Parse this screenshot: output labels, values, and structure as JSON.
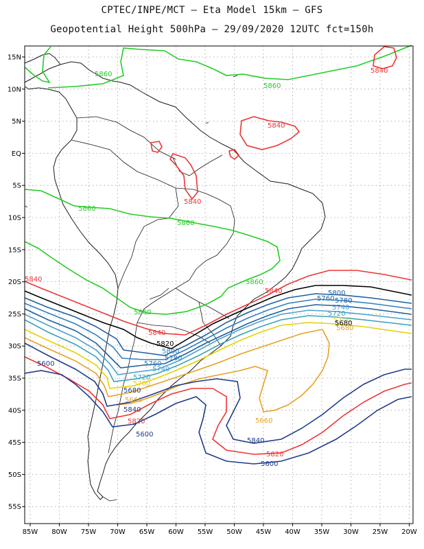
{
  "header": {
    "line1": "CPTEC/INPE/MCT –  Eta Model 15km – GFS",
    "line2": "Geopotential Height 500hPa – 29/09/2020 12UTC fct=150h"
  },
  "axes": {
    "lat_labels": [
      "15N",
      "10N",
      "5N",
      "EQ",
      "5S",
      "10S",
      "15S",
      "20S",
      "25S",
      "30S",
      "35S",
      "40S",
      "45S",
      "50S",
      "55S"
    ],
    "lon_labels": [
      "85W",
      "80W",
      "75W",
      "70W",
      "65W",
      "60W",
      "55W",
      "50W",
      "45W",
      "40W",
      "35W",
      "30W",
      "25W",
      "20W"
    ]
  },
  "contour_labels": [
    {
      "text": "5860",
      "color": "#22cc22"
    },
    {
      "text": "5860",
      "color": "#22cc22"
    },
    {
      "text": "5860",
      "color": "#22cc22"
    },
    {
      "text": "5860",
      "color": "#22cc22"
    },
    {
      "text": "5860",
      "color": "#22cc22"
    },
    {
      "text": "5860",
      "color": "#22cc22"
    },
    {
      "text": "5840",
      "color": "#ee3333"
    },
    {
      "text": "5840",
      "color": "#ee3333"
    },
    {
      "text": "5840",
      "color": "#ee3333"
    },
    {
      "text": "5840",
      "color": "#ee3333"
    },
    {
      "text": "5840",
      "color": "#ee3333"
    },
    {
      "text": "5840",
      "color": "#ee3333"
    },
    {
      "text": "5820",
      "color": "#000000"
    },
    {
      "text": "5800",
      "color": "#1f5fa0"
    },
    {
      "text": "5800",
      "color": "#2f7fbf"
    },
    {
      "text": "5780",
      "color": "#1f5fa0"
    },
    {
      "text": "5780",
      "color": "#2f7fbf"
    },
    {
      "text": "5760",
      "color": "#1f5fa0"
    },
    {
      "text": "5760",
      "color": "#2f7fbf"
    },
    {
      "text": "5740",
      "color": "#4a9fd0"
    },
    {
      "text": "5740",
      "color": "#4a9fd0"
    },
    {
      "text": "5720",
      "color": "#3aa0b8"
    },
    {
      "text": "5720",
      "color": "#3aa0b8"
    },
    {
      "text": "5700",
      "color": "#e6d000"
    },
    {
      "text": "5700",
      "color": "#e6d000"
    },
    {
      "text": "5680",
      "color": "#e8a020"
    },
    {
      "text": "5680",
      "color": "#000000"
    },
    {
      "text": "5660",
      "color": "#e8a020"
    },
    {
      "text": "5660",
      "color": "#e8a020"
    },
    {
      "text": "5680",
      "color": "#1f3a8a"
    },
    {
      "text": "5840",
      "color": "#1f3a8a"
    },
    {
      "text": "5840",
      "color": "#1f3a8a"
    },
    {
      "text": "5820",
      "color": "#ee3333"
    },
    {
      "text": "5820",
      "color": "#ee3333"
    },
    {
      "text": "5600",
      "color": "#1f3a8a"
    },
    {
      "text": "5600",
      "color": "#1f3a8a"
    },
    {
      "text": "5600",
      "color": "#1f3a8a"
    }
  ]
}
